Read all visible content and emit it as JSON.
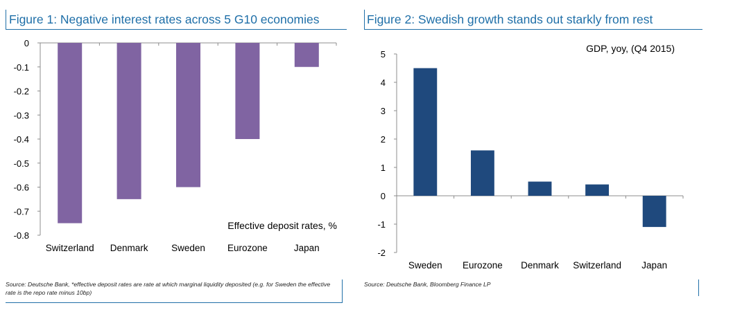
{
  "figures": [
    {
      "title": "Figure 1: Negative interest rates across 5 G10 economies",
      "source": "Source: Deutsche Bank, *effective deposit rates are rate at which marginal liquidity deposited (e.g. for Sweden the effective rate is the repo rate minus 10bp)"
    },
    {
      "title": "Figure 2: Swedish growth stands out starkly from rest",
      "source": "Source: Deutsche Bank, Bloomberg Finance LP"
    }
  ],
  "chart_data": [
    {
      "type": "bar",
      "title": "",
      "annotation": "Effective deposit rates, %",
      "categories": [
        "Switzerland",
        "Denmark",
        "Sweden",
        "Eurozone",
        "Japan"
      ],
      "values": [
        -0.75,
        -0.65,
        -0.6,
        -0.4,
        -0.1
      ],
      "ylim": [
        -0.8,
        0
      ],
      "yticks": [
        0,
        -0.1,
        -0.2,
        -0.3,
        -0.4,
        -0.5,
        -0.6,
        -0.7,
        -0.8
      ],
      "ytick_labels": [
        "0",
        "-0.1",
        "-0.2",
        "-0.3",
        "-0.4",
        "-0.5",
        "-0.6",
        "-0.7",
        "-0.8"
      ],
      "bar_color": "#8064a2",
      "grid": false
    },
    {
      "type": "bar",
      "title": "",
      "annotation": "GDP, yoy, (Q4 2015)",
      "categories": [
        "Sweden",
        "Eurozone",
        "Denmark",
        "Switzerland",
        "Japan"
      ],
      "values": [
        4.5,
        1.6,
        0.5,
        0.4,
        -1.1
      ],
      "ylim": [
        -2,
        5
      ],
      "yticks": [
        5,
        4,
        3,
        2,
        1,
        0,
        -1,
        -2
      ],
      "ytick_labels": [
        "5",
        "4",
        "3",
        "2",
        "1",
        "0",
        "-1",
        "-2"
      ],
      "bar_color": "#1f497d",
      "grid": false
    }
  ]
}
